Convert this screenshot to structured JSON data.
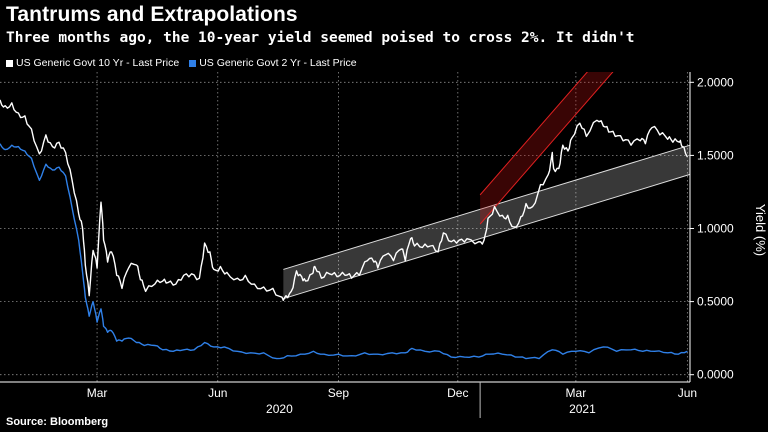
{
  "title": "Tantrums and Extrapolations",
  "subtitle": "Three months ago, the 10-year yield seemed poised to cross 2%. It didn't",
  "source": "Source: Bloomberg",
  "colors": {
    "background": "#000000",
    "series_10y": "#ffffff",
    "series_2y": "#2f80e8",
    "channel_gray": "#ffffff",
    "channel_red": "#cc1111"
  },
  "chart_data": {
    "type": "line",
    "title": "Tantrums and Extrapolations",
    "xlabel": "",
    "ylabel": "Yield (%)",
    "ylim": [
      -0.05,
      2.05
    ],
    "yticks": [
      "2.0000",
      "1.5000",
      "1.0000",
      "0.5000",
      "0.0000"
    ],
    "ytick_values": [
      2.0,
      1.5,
      1.0,
      0.5,
      0.0
    ],
    "xlim": [
      "2020-01-01",
      "2021-06-10"
    ],
    "xticks": [
      {
        "label": "Mar",
        "date": "2020-03-15"
      },
      {
        "label": "Jun",
        "date": "2020-06-15"
      },
      {
        "label": "Sep",
        "date": "2020-09-15"
      },
      {
        "label": "Dec",
        "date": "2020-12-15"
      },
      {
        "label": "Mar",
        "date": "2021-03-15"
      },
      {
        "label": "Jun",
        "date": "2021-06-08"
      }
    ],
    "year_labels": [
      {
        "label": "2020",
        "date": "2020-08-01"
      },
      {
        "label": "2021",
        "date": "2021-03-20"
      }
    ],
    "legend": [
      "US Generic Govt 10 Yr - Last Price",
      "US Generic Govt 2 Yr - Last Price"
    ],
    "series": [
      {
        "name": "US Generic Govt 10 Yr - Last Price",
        "color": "#ffffff",
        "points": [
          [
            "2020-01-01",
            1.88
          ],
          [
            "2020-01-05",
            1.84
          ],
          [
            "2020-01-10",
            1.86
          ],
          [
            "2020-01-15",
            1.79
          ],
          [
            "2020-01-20",
            1.77
          ],
          [
            "2020-01-25",
            1.68
          ],
          [
            "2020-01-31",
            1.51
          ],
          [
            "2020-02-05",
            1.64
          ],
          [
            "2020-02-10",
            1.56
          ],
          [
            "2020-02-15",
            1.59
          ],
          [
            "2020-02-20",
            1.52
          ],
          [
            "2020-02-25",
            1.33
          ],
          [
            "2020-03-01",
            1.1
          ],
          [
            "2020-03-04",
            1.0
          ],
          [
            "2020-03-06",
            0.75
          ],
          [
            "2020-03-09",
            0.54
          ],
          [
            "2020-03-12",
            0.85
          ],
          [
            "2020-03-15",
            0.73
          ],
          [
            "2020-03-18",
            1.18
          ],
          [
            "2020-03-20",
            0.92
          ],
          [
            "2020-03-23",
            0.77
          ],
          [
            "2020-03-26",
            0.84
          ],
          [
            "2020-03-30",
            0.68
          ],
          [
            "2020-04-03",
            0.59
          ],
          [
            "2020-04-08",
            0.73
          ],
          [
            "2020-04-14",
            0.75
          ],
          [
            "2020-04-17",
            0.65
          ],
          [
            "2020-04-21",
            0.57
          ],
          [
            "2020-04-28",
            0.62
          ],
          [
            "2020-05-04",
            0.64
          ],
          [
            "2020-05-08",
            0.63
          ],
          [
            "2020-05-14",
            0.62
          ],
          [
            "2020-05-20",
            0.68
          ],
          [
            "2020-05-26",
            0.69
          ],
          [
            "2020-06-01",
            0.66
          ],
          [
            "2020-06-05",
            0.9
          ],
          [
            "2020-06-09",
            0.84
          ],
          [
            "2020-06-12",
            0.72
          ],
          [
            "2020-06-17",
            0.74
          ],
          [
            "2020-06-22",
            0.7
          ],
          [
            "2020-06-30",
            0.66
          ],
          [
            "2020-07-06",
            0.68
          ],
          [
            "2020-07-13",
            0.62
          ],
          [
            "2020-07-20",
            0.6
          ],
          [
            "2020-07-27",
            0.59
          ],
          [
            "2020-08-03",
            0.53
          ],
          [
            "2020-08-06",
            0.54
          ],
          [
            "2020-08-10",
            0.57
          ],
          [
            "2020-08-14",
            0.71
          ],
          [
            "2020-08-18",
            0.67
          ],
          [
            "2020-08-21",
            0.64
          ],
          [
            "2020-08-26",
            0.69
          ],
          [
            "2020-08-28",
            0.74
          ],
          [
            "2020-09-02",
            0.66
          ],
          [
            "2020-09-08",
            0.69
          ],
          [
            "2020-09-14",
            0.67
          ],
          [
            "2020-09-20",
            0.68
          ],
          [
            "2020-09-25",
            0.66
          ],
          [
            "2020-10-01",
            0.68
          ],
          [
            "2020-10-07",
            0.78
          ],
          [
            "2020-10-12",
            0.77
          ],
          [
            "2020-10-15",
            0.73
          ],
          [
            "2020-10-21",
            0.82
          ],
          [
            "2020-10-27",
            0.78
          ],
          [
            "2020-11-02",
            0.86
          ],
          [
            "2020-11-05",
            0.78
          ],
          [
            "2020-11-09",
            0.93
          ],
          [
            "2020-11-12",
            0.88
          ],
          [
            "2020-11-18",
            0.87
          ],
          [
            "2020-11-24",
            0.88
          ],
          [
            "2020-11-30",
            0.84
          ],
          [
            "2020-12-04",
            0.97
          ],
          [
            "2020-12-10",
            0.91
          ],
          [
            "2020-12-16",
            0.92
          ],
          [
            "2020-12-22",
            0.93
          ],
          [
            "2020-12-31",
            0.91
          ],
          [
            "2021-01-04",
            0.92
          ],
          [
            "2021-01-07",
            1.07
          ],
          [
            "2021-01-12",
            1.15
          ],
          [
            "2021-01-18",
            1.09
          ],
          [
            "2021-01-22",
            1.09
          ],
          [
            "2021-01-27",
            1.01
          ],
          [
            "2021-02-01",
            1.08
          ],
          [
            "2021-02-05",
            1.17
          ],
          [
            "2021-02-10",
            1.15
          ],
          [
            "2021-02-16",
            1.3
          ],
          [
            "2021-02-22",
            1.37
          ],
          [
            "2021-02-25",
            1.52
          ],
          [
            "2021-02-26",
            1.41
          ],
          [
            "2021-03-02",
            1.41
          ],
          [
            "2021-03-05",
            1.57
          ],
          [
            "2021-03-09",
            1.53
          ],
          [
            "2021-03-12",
            1.62
          ],
          [
            "2021-03-18",
            1.72
          ],
          [
            "2021-03-23",
            1.63
          ],
          [
            "2021-03-31",
            1.74
          ],
          [
            "2021-04-05",
            1.7
          ],
          [
            "2021-04-09",
            1.66
          ],
          [
            "2021-04-14",
            1.63
          ],
          [
            "2021-04-20",
            1.6
          ],
          [
            "2021-04-26",
            1.57
          ],
          [
            "2021-05-03",
            1.6
          ],
          [
            "2021-05-07",
            1.58
          ],
          [
            "2021-05-12",
            1.69
          ],
          [
            "2021-05-18",
            1.64
          ],
          [
            "2021-05-24",
            1.61
          ],
          [
            "2021-05-28",
            1.59
          ],
          [
            "2021-06-02",
            1.59
          ],
          [
            "2021-06-04",
            1.56
          ],
          [
            "2021-06-08",
            1.49
          ]
        ]
      },
      {
        "name": "US Generic Govt 2 Yr - Last Price",
        "color": "#2f80e8",
        "points": [
          [
            "2020-01-01",
            1.58
          ],
          [
            "2020-01-05",
            1.54
          ],
          [
            "2020-01-10",
            1.57
          ],
          [
            "2020-01-15",
            1.56
          ],
          [
            "2020-01-20",
            1.53
          ],
          [
            "2020-01-25",
            1.48
          ],
          [
            "2020-01-31",
            1.33
          ],
          [
            "2020-02-05",
            1.44
          ],
          [
            "2020-02-10",
            1.4
          ],
          [
            "2020-02-15",
            1.42
          ],
          [
            "2020-02-20",
            1.36
          ],
          [
            "2020-02-25",
            1.14
          ],
          [
            "2020-03-01",
            0.92
          ],
          [
            "2020-03-04",
            0.7
          ],
          [
            "2020-03-06",
            0.53
          ],
          [
            "2020-03-09",
            0.4
          ],
          [
            "2020-03-12",
            0.5
          ],
          [
            "2020-03-15",
            0.36
          ],
          [
            "2020-03-18",
            0.45
          ],
          [
            "2020-03-20",
            0.33
          ],
          [
            "2020-03-23",
            0.29
          ],
          [
            "2020-03-26",
            0.3
          ],
          [
            "2020-03-30",
            0.23
          ],
          [
            "2020-04-03",
            0.23
          ],
          [
            "2020-04-08",
            0.25
          ],
          [
            "2020-04-14",
            0.22
          ],
          [
            "2020-04-20",
            0.2
          ],
          [
            "2020-04-28",
            0.2
          ],
          [
            "2020-05-04",
            0.17
          ],
          [
            "2020-05-12",
            0.16
          ],
          [
            "2020-05-20",
            0.17
          ],
          [
            "2020-05-28",
            0.17
          ],
          [
            "2020-06-05",
            0.22
          ],
          [
            "2020-06-12",
            0.19
          ],
          [
            "2020-06-20",
            0.19
          ],
          [
            "2020-06-30",
            0.16
          ],
          [
            "2020-07-10",
            0.15
          ],
          [
            "2020-07-20",
            0.15
          ],
          [
            "2020-07-30",
            0.11
          ],
          [
            "2020-08-07",
            0.13
          ],
          [
            "2020-08-17",
            0.14
          ],
          [
            "2020-08-27",
            0.16
          ],
          [
            "2020-09-04",
            0.14
          ],
          [
            "2020-09-15",
            0.14
          ],
          [
            "2020-09-25",
            0.13
          ],
          [
            "2020-10-05",
            0.15
          ],
          [
            "2020-10-15",
            0.14
          ],
          [
            "2020-10-26",
            0.15
          ],
          [
            "2020-11-05",
            0.15
          ],
          [
            "2020-11-10",
            0.18
          ],
          [
            "2020-11-20",
            0.16
          ],
          [
            "2020-12-01",
            0.16
          ],
          [
            "2020-12-10",
            0.12
          ],
          [
            "2020-12-20",
            0.12
          ],
          [
            "2020-12-31",
            0.12
          ],
          [
            "2021-01-08",
            0.14
          ],
          [
            "2021-01-18",
            0.14
          ],
          [
            "2021-01-28",
            0.12
          ],
          [
            "2021-02-05",
            0.11
          ],
          [
            "2021-02-15",
            0.11
          ],
          [
            "2021-02-25",
            0.17
          ],
          [
            "2021-03-05",
            0.14
          ],
          [
            "2021-03-15",
            0.16
          ],
          [
            "2021-03-25",
            0.15
          ],
          [
            "2021-04-05",
            0.19
          ],
          [
            "2021-04-15",
            0.16
          ],
          [
            "2021-04-26",
            0.17
          ],
          [
            "2021-05-05",
            0.16
          ],
          [
            "2021-05-14",
            0.16
          ],
          [
            "2021-05-24",
            0.15
          ],
          [
            "2021-06-01",
            0.14
          ],
          [
            "2021-06-08",
            0.16
          ]
        ]
      }
    ],
    "annotations": [
      {
        "type": "channel",
        "name": "gray-uptrend-channel",
        "color": "#ffffff",
        "lower": [
          [
            "2020-08-04",
            0.52
          ],
          [
            "2021-06-10",
            1.37
          ]
        ],
        "upper": [
          [
            "2020-08-04",
            0.72
          ],
          [
            "2021-06-10",
            1.57
          ]
        ]
      },
      {
        "type": "channel",
        "name": "red-steep-channel",
        "color": "#cc1111",
        "lower": [
          [
            "2021-01-01",
            1.03
          ],
          [
            "2021-04-15",
            2.1
          ]
        ],
        "upper": [
          [
            "2021-01-01",
            1.23
          ],
          [
            "2021-04-15",
            2.3
          ]
        ]
      }
    ]
  }
}
